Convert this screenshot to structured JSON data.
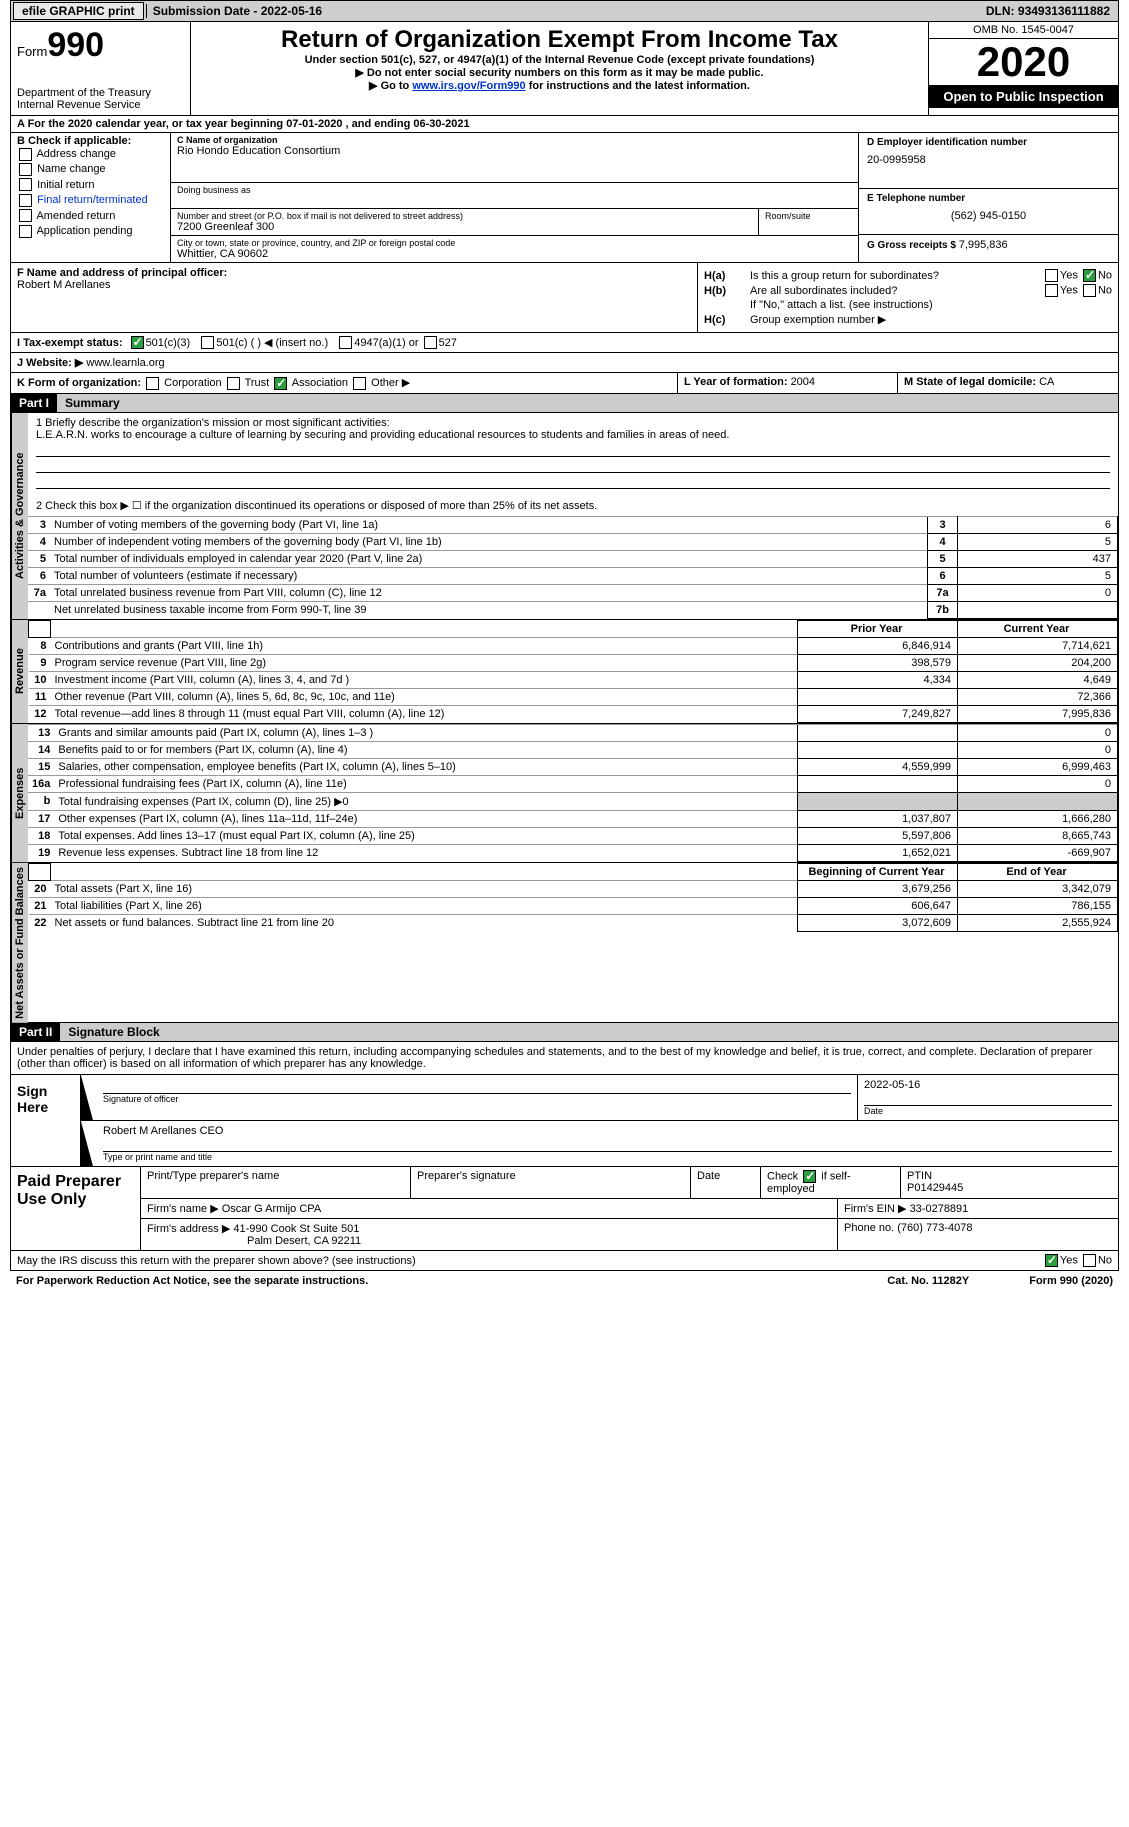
{
  "topbar": {
    "efile": "efile GRAPHIC print",
    "submission_label": "Submission Date - ",
    "submission_date": "2022-05-16",
    "dln_label": "DLN: ",
    "dln": "93493136111882"
  },
  "header": {
    "form_label": "Form",
    "form_no": "990",
    "dept1": "Department of the Treasury",
    "dept2": "Internal Revenue Service",
    "title": "Return of Organization Exempt From Income Tax",
    "sub1": "Under section 501(c), 527, or 4947(a)(1) of the Internal Revenue Code (except private foundations)",
    "sub2": "▶ Do not enter social security numbers on this form as it may be made public.",
    "sub3_pre": "▶ Go to ",
    "sub3_link": "www.irs.gov/Form990",
    "sub3_post": " for instructions and the latest information.",
    "omb": "OMB No. 1545-0047",
    "year": "2020",
    "inspect": "Open to Public Inspection"
  },
  "row_a": "A For the 2020 calendar year, or tax year beginning 07-01-2020    , and ending 06-30-2021",
  "col_b": {
    "title": "B Check if applicable:",
    "o1": "Address change",
    "o2": "Name change",
    "o3": "Initial return",
    "o4": "Final return/terminated",
    "o5": "Amended return",
    "o6": "Application pending"
  },
  "col_c": {
    "name_lbl": "C Name of organization",
    "name": "Rio Hondo Education Consortium",
    "dba_lbl": "Doing business as",
    "addr_lbl": "Number and street (or P.O. box if mail is not delivered to street address)",
    "addr": "7200 Greenleaf 300",
    "room_lbl": "Room/suite",
    "city_lbl": "City or town, state or province, country, and ZIP or foreign postal code",
    "city": "Whittier, CA   90602"
  },
  "col_d": {
    "ein_lbl": "D Employer identification number",
    "ein": "20-0995958",
    "phone_lbl": "E Telephone number",
    "phone": "(562) 945-0150",
    "gross_lbl": "G Gross receipts $ ",
    "gross": "7,995,836"
  },
  "row_f": {
    "lbl": "F Name and address of principal officer:",
    "name": "Robert M Arellanes"
  },
  "row_h": {
    "ha_lbl": "H(a)",
    "ha_txt": "Is this a group return for subordinates?",
    "hb_lbl": "H(b)",
    "hb_txt": "Are all subordinates included?",
    "hb_note": "If \"No,\" attach a list. (see instructions)",
    "hc_lbl": "H(c)",
    "hc_txt": "Group exemption number ▶",
    "yes": "Yes",
    "no": "No"
  },
  "row_i": {
    "lbl": "I   Tax-exempt status:",
    "o1": "501(c)(3)",
    "o2": "501(c) (  ) ◀ (insert no.)",
    "o3": "4947(a)(1) or",
    "o4": "527"
  },
  "row_j": {
    "lbl": "J   Website: ▶",
    "val": "www.learnla.org"
  },
  "row_k": {
    "lbl": "K Form of organization:",
    "o1": "Corporation",
    "o2": "Trust",
    "o3": "Association",
    "o4": "Other ▶",
    "l_lbl": "L Year of formation: ",
    "l_val": "2004",
    "m_lbl": "M State of legal domicile: ",
    "m_val": "CA"
  },
  "parts": {
    "p1": "Part I",
    "p1_title": "Summary",
    "p2": "Part II",
    "p2_title": "Signature Block"
  },
  "vtabs": {
    "ag": "Activities & Governance",
    "rev": "Revenue",
    "exp": "Expenses",
    "na": "Net Assets or Fund Balances"
  },
  "q1": {
    "lbl": "1   Briefly describe the organization's mission or most significant activities:",
    "txt": "L.E.A.R.N. works to encourage a culture of learning by securing and providing educational resources to students and families in areas of need."
  },
  "q2": "2   Check this box ▶ ☐  if the organization discontinued its operations or disposed of more than 25% of its net assets.",
  "rows_gov": [
    {
      "n": "3",
      "t": "Number of voting members of the governing body (Part VI, line 1a)",
      "c": "3",
      "v": "6"
    },
    {
      "n": "4",
      "t": "Number of independent voting members of the governing body (Part VI, line 1b)",
      "c": "4",
      "v": "5"
    },
    {
      "n": "5",
      "t": "Total number of individuals employed in calendar year 2020 (Part V, line 2a)",
      "c": "5",
      "v": "437"
    },
    {
      "n": "6",
      "t": "Total number of volunteers (estimate if necessary)",
      "c": "6",
      "v": "5"
    },
    {
      "n": "7a",
      "t": "Total unrelated business revenue from Part VIII, column (C), line 12",
      "c": "7a",
      "v": "0"
    },
    {
      "n": "",
      "t": "Net unrelated business taxable income from Form 990-T, line 39",
      "c": "7b",
      "v": ""
    }
  ],
  "hdr_py": "Prior Year",
  "hdr_cy": "Current Year",
  "rows_rev": [
    {
      "n": "8",
      "t": "Contributions and grants (Part VIII, line 1h)",
      "py": "6,846,914",
      "cy": "7,714,621"
    },
    {
      "n": "9",
      "t": "Program service revenue (Part VIII, line 2g)",
      "py": "398,579",
      "cy": "204,200"
    },
    {
      "n": "10",
      "t": "Investment income (Part VIII, column (A), lines 3, 4, and 7d )",
      "py": "4,334",
      "cy": "4,649"
    },
    {
      "n": "11",
      "t": "Other revenue (Part VIII, column (A), lines 5, 6d, 8c, 9c, 10c, and 11e)",
      "py": "",
      "cy": "72,366"
    },
    {
      "n": "12",
      "t": "Total revenue—add lines 8 through 11 (must equal Part VIII, column (A), line 12)",
      "py": "7,249,827",
      "cy": "7,995,836"
    }
  ],
  "rows_exp": [
    {
      "n": "13",
      "t": "Grants and similar amounts paid (Part IX, column (A), lines 1–3 )",
      "py": "",
      "cy": "0"
    },
    {
      "n": "14",
      "t": "Benefits paid to or for members (Part IX, column (A), line 4)",
      "py": "",
      "cy": "0"
    },
    {
      "n": "15",
      "t": "Salaries, other compensation, employee benefits (Part IX, column (A), lines 5–10)",
      "py": "4,559,999",
      "cy": "6,999,463"
    },
    {
      "n": "16a",
      "t": "Professional fundraising fees (Part IX, column (A), line 11e)",
      "py": "",
      "cy": "0"
    },
    {
      "n": "b",
      "t": "Total fundraising expenses (Part IX, column (D), line 25) ▶0",
      "py": "GREY",
      "cy": "GREY"
    },
    {
      "n": "17",
      "t": "Other expenses (Part IX, column (A), lines 11a–11d, 11f–24e)",
      "py": "1,037,807",
      "cy": "1,666,280"
    },
    {
      "n": "18",
      "t": "Total expenses. Add lines 13–17 (must equal Part IX, column (A), line 25)",
      "py": "5,597,806",
      "cy": "8,665,743"
    },
    {
      "n": "19",
      "t": "Revenue less expenses. Subtract line 18 from line 12",
      "py": "1,652,021",
      "cy": "-669,907"
    }
  ],
  "hdr_bcy": "Beginning of Current Year",
  "hdr_eoy": "End of Year",
  "rows_na": [
    {
      "n": "20",
      "t": "Total assets (Part X, line 16)",
      "py": "3,679,256",
      "cy": "3,342,079"
    },
    {
      "n": "21",
      "t": "Total liabilities (Part X, line 26)",
      "py": "606,647",
      "cy": "786,155"
    },
    {
      "n": "22",
      "t": "Net assets or fund balances. Subtract line 21 from line 20",
      "py": "3,072,609",
      "cy": "2,555,924"
    }
  ],
  "perjury": "Under penalties of perjury, I declare that I have examined this return, including accompanying schedules and statements, and to the best of my knowledge and belief, it is true, correct, and complete. Declaration of preparer (other than officer) is based on all information of which preparer has any knowledge.",
  "sign": {
    "here": "Sign Here",
    "sig_lbl": "Signature of officer",
    "date_lbl": "Date",
    "date": "2022-05-16",
    "name": "Robert M Arellanes  CEO",
    "name_lbl": "Type or print name and title"
  },
  "paid": {
    "title": "Paid Preparer Use Only",
    "h1": "Print/Type preparer's name",
    "h2": "Preparer's signature",
    "h3": "Date",
    "h4_pre": "Check ",
    "h4_post": " if self-employed",
    "h5": "PTIN",
    "ptin": "P01429445",
    "firm_name_lbl": "Firm's name    ▶ ",
    "firm_name": "Oscar G Armijo CPA",
    "firm_ein_lbl": "Firm's EIN ▶ ",
    "firm_ein": "33-0278891",
    "firm_addr_lbl": "Firm's address ▶ ",
    "firm_addr1": "41-990 Cook St Suite 501",
    "firm_addr2": "Palm Desert, CA   92211",
    "phone_lbl": "Phone no. ",
    "phone": "(760) 773-4078"
  },
  "discuss": "May the IRS discuss this return with the preparer shown above? (see instructions)",
  "foot": {
    "l": "For Paperwork Reduction Act Notice, see the separate instructions.",
    "m": "Cat. No. 11282Y",
    "r": "Form 990 (2020)"
  }
}
